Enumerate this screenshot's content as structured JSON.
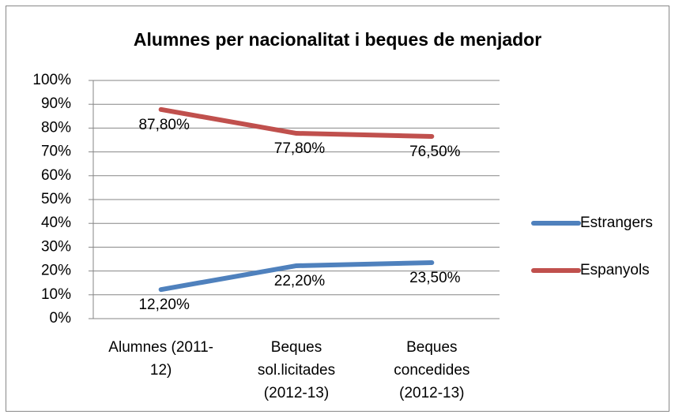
{
  "chart_data": {
    "type": "line",
    "title": "Alumnes per nacionalitat i beques de menjador",
    "categories": [
      "Alumnes (2011-12)",
      "Beques sol.licitades (2012-13)",
      "Beques concedides (2012-13)"
    ],
    "series": [
      {
        "name": "Estrangers",
        "color": "#4f81bd",
        "values": [
          12.2,
          22.2,
          23.5
        ],
        "value_labels": [
          "12,20%",
          "22,20%",
          "23,50%"
        ]
      },
      {
        "name": "Espanyols",
        "color": "#c0504d",
        "values": [
          87.8,
          77.8,
          76.5
        ],
        "value_labels": [
          "87,80%",
          "77,80%",
          "76,50%"
        ]
      }
    ],
    "ylim": [
      0,
      100
    ],
    "yticks": [
      {
        "value": 0,
        "label": "0%"
      },
      {
        "value": 10,
        "label": "10%"
      },
      {
        "value": 20,
        "label": "20%"
      },
      {
        "value": 30,
        "label": "30%"
      },
      {
        "value": 40,
        "label": "40%"
      },
      {
        "value": 50,
        "label": "50%"
      },
      {
        "value": 60,
        "label": "60%"
      },
      {
        "value": 70,
        "label": "70%"
      },
      {
        "value": 80,
        "label": "80%"
      },
      {
        "value": 90,
        "label": "90%"
      },
      {
        "value": 100,
        "label": "100%"
      }
    ],
    "grid": true,
    "legend": "right"
  }
}
